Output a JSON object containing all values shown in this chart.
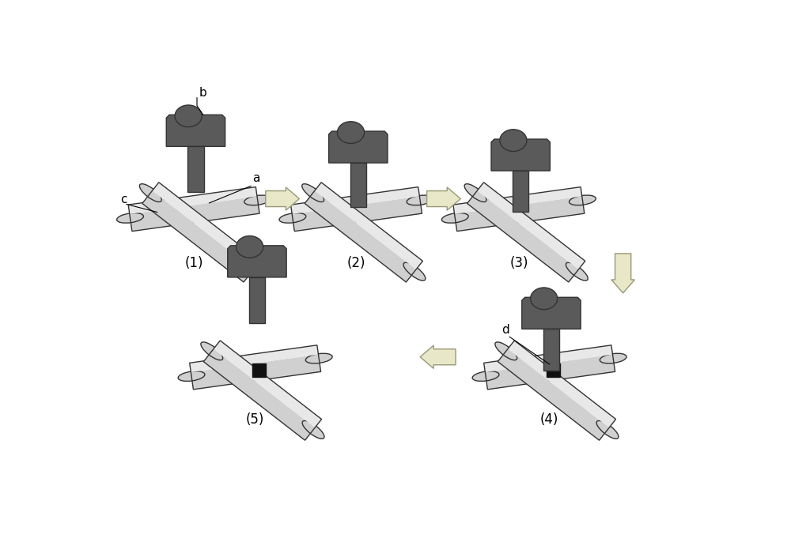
{
  "bg_color": "#ffffff",
  "tool_body_color": "#5a5a5a",
  "tool_outline": "#333333",
  "wire_face_color": "#d0d0d0",
  "wire_top_color": "#e8e8e8",
  "wire_outline": "#333333",
  "deposit_color": "#111111",
  "arrow_fill": "#e8e8c8",
  "arrow_edge": "#999977",
  "label_color": "#000000",
  "fig_labels": [
    "(1)",
    "(2)",
    "(3)",
    "(4)",
    "(5)"
  ],
  "figsize": [
    10.0,
    6.91
  ],
  "dpi": 100
}
